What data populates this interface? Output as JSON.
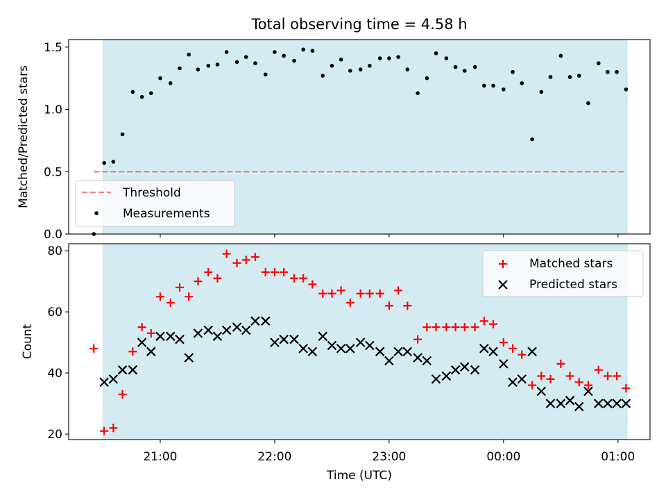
{
  "chart_data": [
    {
      "type": "scatter",
      "title": "Total observing time = 4.58 h",
      "ylabel": "Matched/Predicted stars",
      "ylim": [
        0,
        1.56
      ],
      "yticks": [
        "0.0",
        "0.5",
        "1.0",
        "1.5"
      ],
      "ytick_values": [
        0,
        0.5,
        1.0,
        1.5
      ],
      "xlim_hours": [
        20.2,
        25.28
      ],
      "observing_window_hours": [
        20.5,
        25.08
      ],
      "observing_window_color": "#add8e6",
      "legend_placement": "lower-left",
      "series": [
        {
          "name": "Threshold",
          "style": "dashed-line",
          "color": "#f08080",
          "x": [
            20.42,
            25.06
          ],
          "y": [
            0.5,
            0.5
          ]
        },
        {
          "name": "Measurements",
          "style": "dot",
          "color": "#000000",
          "x": [
            20.42,
            20.51,
            20.59,
            20.67,
            20.76,
            20.84,
            20.92,
            21.0,
            21.09,
            21.17,
            21.25,
            21.33,
            21.42,
            21.5,
            21.58,
            21.67,
            21.75,
            21.83,
            21.92,
            22.0,
            22.08,
            22.17,
            22.25,
            22.33,
            22.42,
            22.5,
            22.58,
            22.66,
            22.75,
            22.83,
            22.92,
            23.0,
            23.08,
            23.16,
            23.25,
            23.33,
            23.41,
            23.5,
            23.58,
            23.66,
            23.75,
            23.83,
            23.91,
            24.0,
            24.08,
            24.16,
            24.25,
            24.33,
            24.41,
            24.5,
            24.58,
            24.66,
            24.74,
            24.83,
            24.91,
            24.99,
            25.07
          ],
          "y": [
            0.0,
            0.57,
            0.58,
            0.8,
            1.14,
            1.1,
            1.13,
            1.25,
            1.21,
            1.33,
            1.44,
            1.32,
            1.35,
            1.36,
            1.46,
            1.38,
            1.42,
            1.37,
            1.28,
            1.46,
            1.43,
            1.39,
            1.48,
            1.47,
            1.27,
            1.35,
            1.4,
            1.31,
            1.32,
            1.35,
            1.41,
            1.41,
            1.42,
            1.32,
            1.13,
            1.25,
            1.45,
            1.41,
            1.34,
            1.31,
            1.34,
            1.19,
            1.19,
            1.16,
            1.3,
            1.21,
            0.76,
            1.14,
            1.26,
            1.43,
            1.26,
            1.27,
            1.05,
            1.37,
            1.3,
            1.3,
            1.16
          ]
        }
      ]
    },
    {
      "type": "scatter",
      "xlabel": "Time (UTC)",
      "ylabel": "Count",
      "ylim": [
        18.2,
        82.3
      ],
      "yticks": [
        "20",
        "40",
        "60",
        "80"
      ],
      "ytick_values": [
        20,
        40,
        60,
        80
      ],
      "xlim_hours": [
        20.2,
        25.28
      ],
      "xticks": [
        "21:00",
        "22:00",
        "23:00",
        "00:00",
        "01:00"
      ],
      "xtick_values": [
        21,
        22,
        23,
        24,
        25
      ],
      "observing_window_hours": [
        20.5,
        25.08
      ],
      "observing_window_color": "#add8e6",
      "legend_placement": "upper-right",
      "series": [
        {
          "name": "Matched stars",
          "marker": "plus",
          "color": "#ff0000",
          "x": [
            20.42,
            20.51,
            20.59,
            20.67,
            20.76,
            20.84,
            20.92,
            21.0,
            21.09,
            21.17,
            21.25,
            21.33,
            21.42,
            21.5,
            21.58,
            21.67,
            21.75,
            21.83,
            21.92,
            22.0,
            22.08,
            22.17,
            22.25,
            22.33,
            22.42,
            22.5,
            22.58,
            22.66,
            22.75,
            22.83,
            22.92,
            23.0,
            23.08,
            23.16,
            23.25,
            23.33,
            23.41,
            23.5,
            23.58,
            23.66,
            23.75,
            23.83,
            23.91,
            24.0,
            24.08,
            24.16,
            24.25,
            24.33,
            24.41,
            24.5,
            24.58,
            24.66,
            24.74,
            24.83,
            24.91,
            24.99,
            25.07
          ],
          "y": [
            48,
            21,
            22,
            33,
            47,
            55,
            53,
            65,
            63,
            68,
            65,
            70,
            73,
            71,
            79,
            76,
            77,
            78,
            73,
            73,
            73,
            71,
            71,
            69,
            66,
            66,
            67,
            63,
            66,
            66,
            66,
            62,
            67,
            62,
            51,
            55,
            55,
            55,
            55,
            55,
            55,
            57,
            56,
            50,
            48,
            46,
            36,
            39,
            38,
            43,
            39,
            37,
            36,
            41,
            39,
            39,
            35
          ]
        },
        {
          "name": "Predicted stars",
          "marker": "x",
          "color": "#000000",
          "x": [
            20.51,
            20.59,
            20.67,
            20.76,
            20.84,
            20.92,
            21.0,
            21.09,
            21.17,
            21.25,
            21.33,
            21.42,
            21.5,
            21.58,
            21.67,
            21.75,
            21.83,
            21.92,
            22.0,
            22.08,
            22.17,
            22.25,
            22.33,
            22.42,
            22.5,
            22.58,
            22.66,
            22.75,
            22.83,
            22.92,
            23.0,
            23.08,
            23.16,
            23.25,
            23.33,
            23.41,
            23.5,
            23.58,
            23.66,
            23.75,
            23.83,
            23.91,
            24.0,
            24.08,
            24.16,
            24.25,
            24.33,
            24.41,
            24.5,
            24.58,
            24.66,
            24.74,
            24.83,
            24.91,
            24.99,
            25.07
          ],
          "y": [
            37,
            38,
            41,
            41,
            50,
            47,
            52,
            52,
            51,
            45,
            53,
            54,
            52,
            54,
            55,
            54,
            57,
            57,
            50,
            51,
            51,
            48,
            47,
            52,
            49,
            48,
            48,
            50,
            49,
            47,
            44,
            47,
            47,
            45,
            44,
            38,
            39,
            41,
            42,
            41,
            48,
            47,
            43,
            37,
            38,
            47,
            34,
            30,
            30,
            31,
            29,
            34,
            30,
            30,
            30,
            30
          ]
        }
      ]
    }
  ]
}
